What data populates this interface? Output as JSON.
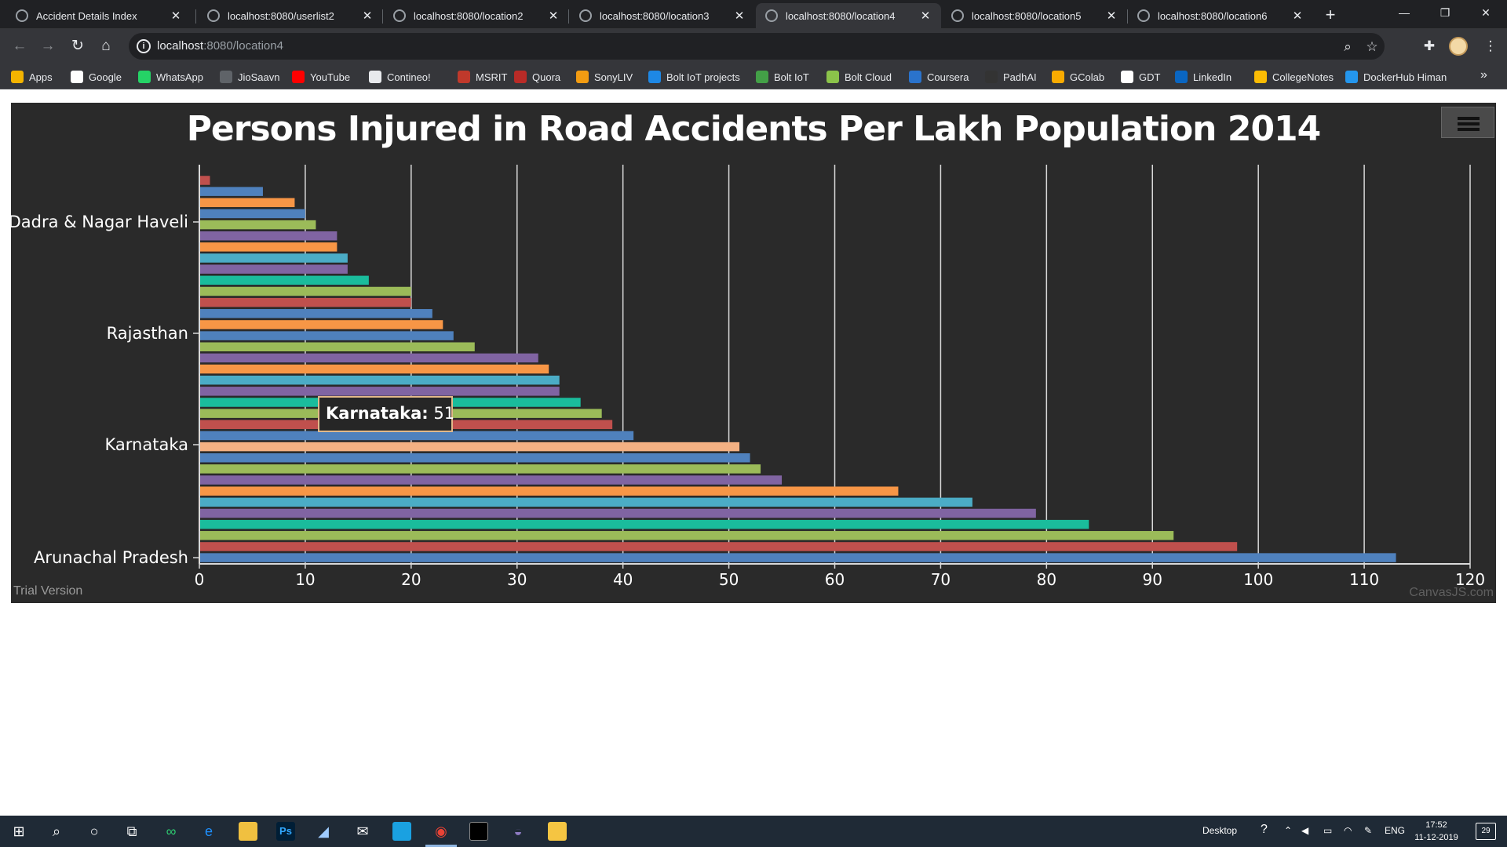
{
  "browser": {
    "tabs": [
      {
        "label": "Accident Details Index",
        "active": false
      },
      {
        "label": "localhost:8080/userlist2",
        "active": false
      },
      {
        "label": "localhost:8080/location2",
        "active": false
      },
      {
        "label": "localhost:8080/location3",
        "active": false
      },
      {
        "label": "localhost:8080/location4",
        "active": true
      },
      {
        "label": "localhost:8080/location5",
        "active": false
      },
      {
        "label": "localhost:8080/location6",
        "active": false
      }
    ],
    "address": {
      "host": "localhost",
      "path": ":8080/location4"
    },
    "bookmarks": [
      {
        "label": "Apps",
        "color": "#f4b400"
      },
      {
        "label": "Google",
        "color": "#ffffff"
      },
      {
        "label": "WhatsApp",
        "color": "#25d366"
      },
      {
        "label": "JioSaavn",
        "color": "#5f6368"
      },
      {
        "label": "YouTube",
        "color": "#ff0000"
      },
      {
        "label": "Contineo!",
        "color": "#e8eaed"
      },
      {
        "label": "MSRIT",
        "color": "#c0392b"
      },
      {
        "label": "Quora",
        "color": "#b92b27"
      },
      {
        "label": "SonyLIV",
        "color": "#f39c12"
      },
      {
        "label": "Bolt IoT projects",
        "color": "#1e88e5"
      },
      {
        "label": "Bolt IoT",
        "color": "#43a047"
      },
      {
        "label": "Bolt Cloud",
        "color": "#8bc34a"
      },
      {
        "label": "Coursera",
        "color": "#2a73cc"
      },
      {
        "label": "PadhAI",
        "color": "#333333"
      },
      {
        "label": "GColab",
        "color": "#f9ab00"
      },
      {
        "label": "GDT",
        "color": "#ffffff"
      },
      {
        "label": "LinkedIn",
        "color": "#0a66c2"
      },
      {
        "label": "CollegeNotes",
        "color": "#fbbc04"
      },
      {
        "label": "DockerHub Himan",
        "color": "#2496ed"
      }
    ]
  },
  "chart_data": {
    "type": "bar",
    "orientation": "horizontal",
    "title": "Persons Injured in Road Accidents Per Lakh Population 2014",
    "xlim": [
      0,
      120
    ],
    "x_ticks": [
      0,
      10,
      20,
      30,
      40,
      50,
      60,
      70,
      80,
      90,
      100,
      110,
      120
    ],
    "grid": true,
    "visible_category_labels": [
      "Dadra & Nagar Haveli",
      "Rajasthan",
      "Karnataka",
      "Arunachal Pradesh"
    ],
    "values": [
      1,
      6,
      9,
      10,
      11,
      13,
      13,
      14,
      14,
      16,
      20,
      20,
      22,
      23,
      24,
      26,
      32,
      33,
      34,
      34,
      36,
      38,
      39,
      41,
      51,
      52,
      53,
      55,
      66,
      73,
      79,
      84,
      92,
      98,
      113
    ],
    "bar_colors": [
      "#c0504d",
      "#4f81bd",
      "#f79646",
      "#4f81bd",
      "#9bbb59",
      "#8064a2",
      "#f79646",
      "#4bacc6",
      "#8064a2",
      "#1abc9c",
      "#9bbb59",
      "#c0504d",
      "#4f81bd",
      "#f79646",
      "#4f81bd",
      "#9bbb59",
      "#8064a2",
      "#f79646",
      "#4bacc6",
      "#8064a2",
      "#1abc9c",
      "#9bbb59",
      "#c0504d",
      "#4f81bd",
      "#f4b183",
      "#4f81bd",
      "#9bbb59",
      "#8064a2",
      "#f79646",
      "#4bacc6",
      "#8064a2",
      "#1abc9c",
      "#9bbb59",
      "#c0504d",
      "#4f81bd"
    ],
    "tooltip": {
      "label": "Karnataka:",
      "value": "51"
    },
    "trial_text": "Trial Version",
    "credit": "CanvasJS.com"
  },
  "taskbar": {
    "desktop_label": "Desktop",
    "language": "ENG",
    "time": "17:52",
    "date": "11-12-2019",
    "notifications": "29"
  }
}
